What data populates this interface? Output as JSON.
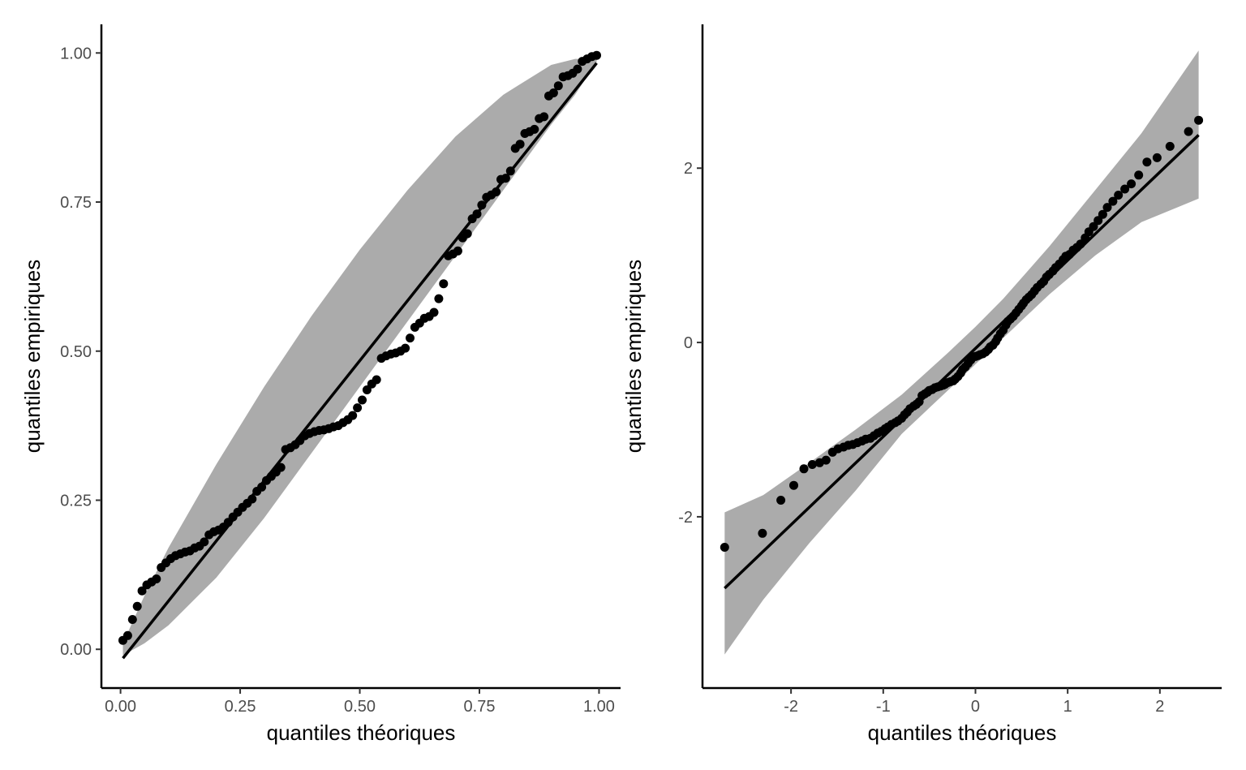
{
  "chart_data": [
    {
      "type": "scatter",
      "panel": "left",
      "xlabel": "quantiles théoriques",
      "ylabel": "quantiles empiriques",
      "xlim": [
        -0.04,
        1.045
      ],
      "ylim": [
        -0.065,
        1.048
      ],
      "x_ticks": [
        0.0,
        0.25,
        0.5,
        0.75,
        1.0
      ],
      "x_tick_labels": [
        "0.00",
        "0.25",
        "0.50",
        "0.75",
        "1.00"
      ],
      "y_ticks": [
        0.0,
        0.25,
        0.5,
        0.75,
        1.0
      ],
      "y_tick_labels": [
        "0.00",
        "0.25",
        "0.50",
        "0.75",
        "1.00"
      ],
      "grid": false,
      "reference_line": {
        "x": [
          0.005,
          0.995
        ],
        "y": [
          -0.015,
          0.983
        ]
      },
      "confidence_band": {
        "x": [
          0.005,
          0.05,
          0.1,
          0.2,
          0.3,
          0.4,
          0.5,
          0.6,
          0.7,
          0.8,
          0.9,
          0.95,
          0.995
        ],
        "upper": [
          0.01,
          0.09,
          0.17,
          0.31,
          0.44,
          0.56,
          0.67,
          0.77,
          0.86,
          0.93,
          0.98,
          0.99,
          0.99
        ],
        "lower": [
          -0.01,
          0.01,
          0.04,
          0.12,
          0.22,
          0.33,
          0.44,
          0.55,
          0.66,
          0.77,
          0.88,
          0.93,
          0.985
        ]
      },
      "points": [
        [
          0.005,
          0.015
        ],
        [
          0.015,
          0.023
        ],
        [
          0.025,
          0.05
        ],
        [
          0.035,
          0.072
        ],
        [
          0.045,
          0.098
        ],
        [
          0.055,
          0.108
        ],
        [
          0.065,
          0.113
        ],
        [
          0.075,
          0.118
        ],
        [
          0.085,
          0.137
        ],
        [
          0.095,
          0.145
        ],
        [
          0.105,
          0.152
        ],
        [
          0.115,
          0.157
        ],
        [
          0.125,
          0.16
        ],
        [
          0.135,
          0.163
        ],
        [
          0.145,
          0.165
        ],
        [
          0.155,
          0.17
        ],
        [
          0.165,
          0.173
        ],
        [
          0.175,
          0.18
        ],
        [
          0.185,
          0.192
        ],
        [
          0.195,
          0.197
        ],
        [
          0.205,
          0.2
        ],
        [
          0.215,
          0.205
        ],
        [
          0.225,
          0.213
        ],
        [
          0.235,
          0.222
        ],
        [
          0.245,
          0.23
        ],
        [
          0.255,
          0.238
        ],
        [
          0.265,
          0.245
        ],
        [
          0.275,
          0.252
        ],
        [
          0.285,
          0.265
        ],
        [
          0.295,
          0.272
        ],
        [
          0.305,
          0.283
        ],
        [
          0.315,
          0.29
        ],
        [
          0.325,
          0.297
        ],
        [
          0.335,
          0.305
        ],
        [
          0.345,
          0.335
        ],
        [
          0.355,
          0.338
        ],
        [
          0.365,
          0.343
        ],
        [
          0.375,
          0.35
        ],
        [
          0.385,
          0.358
        ],
        [
          0.395,
          0.362
        ],
        [
          0.405,
          0.365
        ],
        [
          0.415,
          0.367
        ],
        [
          0.425,
          0.368
        ],
        [
          0.435,
          0.37
        ],
        [
          0.445,
          0.373
        ],
        [
          0.455,
          0.375
        ],
        [
          0.465,
          0.38
        ],
        [
          0.475,
          0.385
        ],
        [
          0.485,
          0.392
        ],
        [
          0.495,
          0.405
        ],
        [
          0.505,
          0.418
        ],
        [
          0.515,
          0.435
        ],
        [
          0.525,
          0.445
        ],
        [
          0.535,
          0.452
        ],
        [
          0.545,
          0.488
        ],
        [
          0.555,
          0.492
        ],
        [
          0.565,
          0.495
        ],
        [
          0.575,
          0.497
        ],
        [
          0.585,
          0.5
        ],
        [
          0.595,
          0.505
        ],
        [
          0.605,
          0.522
        ],
        [
          0.615,
          0.54
        ],
        [
          0.625,
          0.547
        ],
        [
          0.635,
          0.555
        ],
        [
          0.645,
          0.558
        ],
        [
          0.655,
          0.565
        ],
        [
          0.665,
          0.588
        ],
        [
          0.675,
          0.613
        ],
        [
          0.685,
          0.66
        ],
        [
          0.695,
          0.663
        ],
        [
          0.705,
          0.668
        ],
        [
          0.715,
          0.69
        ],
        [
          0.725,
          0.697
        ],
        [
          0.735,
          0.722
        ],
        [
          0.745,
          0.73
        ],
        [
          0.755,
          0.745
        ],
        [
          0.765,
          0.758
        ],
        [
          0.775,
          0.762
        ],
        [
          0.785,
          0.767
        ],
        [
          0.795,
          0.788
        ],
        [
          0.805,
          0.79
        ],
        [
          0.815,
          0.802
        ],
        [
          0.825,
          0.84
        ],
        [
          0.835,
          0.847
        ],
        [
          0.845,
          0.865
        ],
        [
          0.855,
          0.868
        ],
        [
          0.865,
          0.872
        ],
        [
          0.875,
          0.89
        ],
        [
          0.885,
          0.893
        ],
        [
          0.895,
          0.928
        ],
        [
          0.905,
          0.933
        ],
        [
          0.915,
          0.945
        ],
        [
          0.925,
          0.96
        ],
        [
          0.935,
          0.962
        ],
        [
          0.945,
          0.966
        ],
        [
          0.955,
          0.973
        ],
        [
          0.965,
          0.986
        ],
        [
          0.975,
          0.99
        ],
        [
          0.985,
          0.994
        ],
        [
          0.995,
          0.996
        ]
      ]
    },
    {
      "type": "scatter",
      "panel": "right",
      "xlabel": "quantiles théoriques",
      "ylabel": "quantiles empiriques",
      "xlim": [
        -2.96,
        2.67
      ],
      "ylim": [
        -3.965,
        3.65
      ],
      "x_ticks": [
        -2,
        -1,
        0,
        1,
        2
      ],
      "x_tick_labels": [
        "-2",
        "-1",
        "0",
        "1",
        "2"
      ],
      "y_ticks": [
        -2,
        0,
        2
      ],
      "y_tick_labels": [
        "-2",
        "0",
        "2"
      ],
      "grid": false,
      "reference_line": {
        "x": [
          -2.72,
          2.42
        ],
        "y": [
          -2.82,
          2.38
        ]
      },
      "confidence_band": {
        "x": [
          -2.72,
          -2.3,
          -1.8,
          -1.3,
          -0.8,
          -0.3,
          0.0,
          0.3,
          0.8,
          1.3,
          1.8,
          2.42
        ],
        "upper": [
          -1.95,
          -1.75,
          -1.38,
          -1.0,
          -0.6,
          -0.12,
          0.18,
          0.5,
          1.1,
          1.75,
          2.4,
          3.35
        ],
        "lower": [
          -3.58,
          -2.95,
          -2.3,
          -1.7,
          -1.05,
          -0.55,
          -0.25,
          0.05,
          0.55,
          1.0,
          1.38,
          1.65
        ]
      },
      "points": [
        [
          -2.72,
          -2.35
        ],
        [
          -2.31,
          -2.19
        ],
        [
          -2.11,
          -1.81
        ],
        [
          -1.97,
          -1.64
        ],
        [
          -1.86,
          -1.45
        ],
        [
          -1.77,
          -1.4
        ],
        [
          -1.69,
          -1.38
        ],
        [
          -1.62,
          -1.35
        ],
        [
          -1.55,
          -1.26
        ],
        [
          -1.49,
          -1.22
        ],
        [
          -1.43,
          -1.2
        ],
        [
          -1.38,
          -1.18
        ],
        [
          -1.33,
          -1.17
        ],
        [
          -1.28,
          -1.15
        ],
        [
          -1.23,
          -1.13
        ],
        [
          -1.19,
          -1.11
        ],
        [
          -1.14,
          -1.1
        ],
        [
          -1.1,
          -1.07
        ],
        [
          -1.06,
          -1.04
        ],
        [
          -1.02,
          -1.02
        ],
        [
          -0.98,
          -0.99
        ],
        [
          -0.95,
          -0.97
        ],
        [
          -0.91,
          -0.94
        ],
        [
          -0.87,
          -0.92
        ],
        [
          -0.84,
          -0.9
        ],
        [
          -0.8,
          -0.87
        ],
        [
          -0.77,
          -0.83
        ],
        [
          -0.74,
          -0.8
        ],
        [
          -0.71,
          -0.76
        ],
        [
          -0.67,
          -0.73
        ],
        [
          -0.64,
          -0.71
        ],
        [
          -0.61,
          -0.68
        ],
        [
          -0.58,
          -0.61
        ],
        [
          -0.55,
          -0.59
        ],
        [
          -0.52,
          -0.57
        ],
        [
          -0.5,
          -0.55
        ],
        [
          -0.47,
          -0.54
        ],
        [
          -0.44,
          -0.52
        ],
        [
          -0.41,
          -0.51
        ],
        [
          -0.38,
          -0.5
        ],
        [
          -0.35,
          -0.49
        ],
        [
          -0.33,
          -0.48
        ],
        [
          -0.3,
          -0.46
        ],
        [
          -0.27,
          -0.45
        ],
        [
          -0.24,
          -0.44
        ],
        [
          -0.22,
          -0.42
        ],
        [
          -0.19,
          -0.39
        ],
        [
          -0.16,
          -0.35
        ],
        [
          -0.14,
          -0.31
        ],
        [
          -0.11,
          -0.28
        ],
        [
          -0.08,
          -0.24
        ],
        [
          -0.05,
          -0.2
        ],
        [
          -0.03,
          -0.17
        ],
        [
          0.0,
          -0.16
        ],
        [
          0.03,
          -0.15
        ],
        [
          0.05,
          -0.14
        ],
        [
          0.08,
          -0.13
        ],
        [
          0.11,
          -0.11
        ],
        [
          0.14,
          -0.08
        ],
        [
          0.16,
          -0.05
        ],
        [
          0.19,
          -0.03
        ],
        [
          0.22,
          0.01
        ],
        [
          0.24,
          0.05
        ],
        [
          0.27,
          0.1
        ],
        [
          0.3,
          0.14
        ],
        [
          0.33,
          0.2
        ],
        [
          0.35,
          0.24
        ],
        [
          0.38,
          0.27
        ],
        [
          0.41,
          0.3
        ],
        [
          0.44,
          0.34
        ],
        [
          0.47,
          0.38
        ],
        [
          0.5,
          0.42
        ],
        [
          0.52,
          0.45
        ],
        [
          0.55,
          0.49
        ],
        [
          0.58,
          0.52
        ],
        [
          0.61,
          0.55
        ],
        [
          0.64,
          0.59
        ],
        [
          0.67,
          0.63
        ],
        [
          0.71,
          0.67
        ],
        [
          0.74,
          0.7
        ],
        [
          0.77,
          0.75
        ],
        [
          0.8,
          0.78
        ],
        [
          0.84,
          0.82
        ],
        [
          0.87,
          0.86
        ],
        [
          0.91,
          0.9
        ],
        [
          0.95,
          0.95
        ],
        [
          0.98,
          0.99
        ],
        [
          1.02,
          1.01
        ],
        [
          1.06,
          1.06
        ],
        [
          1.1,
          1.09
        ],
        [
          1.14,
          1.13
        ],
        [
          1.19,
          1.2
        ],
        [
          1.23,
          1.27
        ],
        [
          1.28,
          1.33
        ],
        [
          1.33,
          1.4
        ],
        [
          1.38,
          1.47
        ],
        [
          1.43,
          1.55
        ],
        [
          1.49,
          1.62
        ],
        [
          1.55,
          1.69
        ],
        [
          1.62,
          1.76
        ],
        [
          1.69,
          1.82
        ],
        [
          1.77,
          1.92
        ],
        [
          1.86,
          2.07
        ],
        [
          1.97,
          2.12
        ],
        [
          2.11,
          2.25
        ],
        [
          2.31,
          2.42
        ],
        [
          2.42,
          2.55
        ]
      ]
    }
  ]
}
